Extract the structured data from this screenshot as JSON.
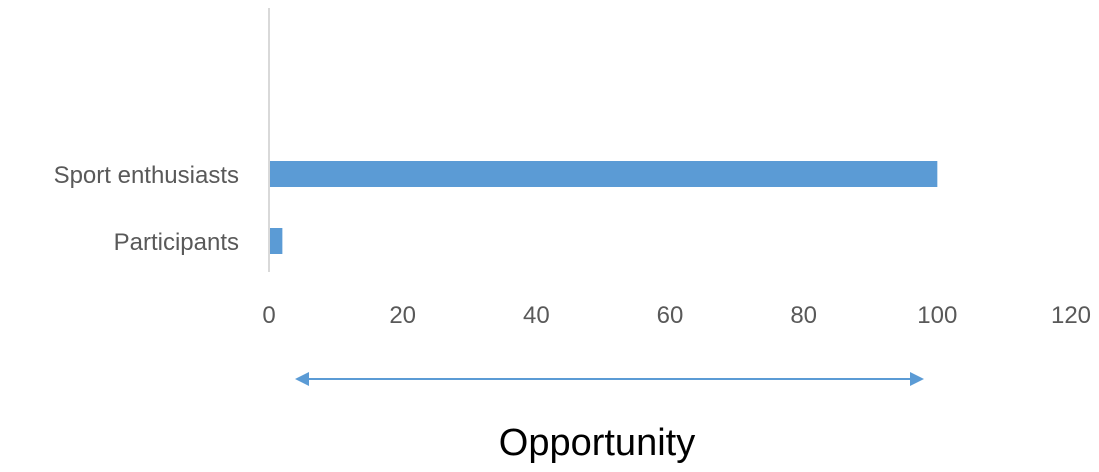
{
  "chart_data": {
    "type": "bar",
    "orientation": "horizontal",
    "categories": [
      "Sport enthusiasts",
      "Participants"
    ],
    "values": [
      100,
      2
    ],
    "xlim": [
      0,
      120
    ],
    "x_ticks": [
      0,
      20,
      40,
      60,
      80,
      100,
      120
    ],
    "x_tick_labels": [
      "0",
      "20",
      "40",
      "60",
      "80",
      "100",
      "120"
    ],
    "grid": false,
    "legend": "none",
    "bar_color": "#5B9BD5",
    "axis_color": "#D9D9D9",
    "annotation": {
      "type": "double-arrow",
      "label": "Opportunity",
      "color": "#5B9BD5"
    }
  }
}
